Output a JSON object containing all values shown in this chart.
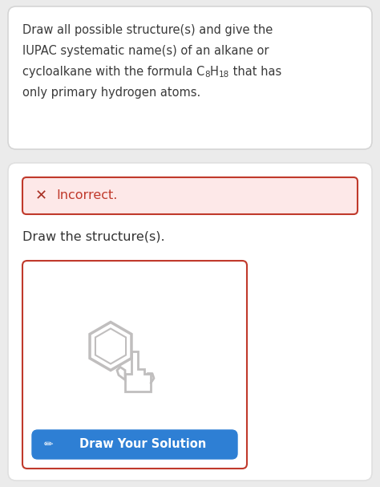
{
  "bg_color": "#ebebeb",
  "card1_bg": "#ffffff",
  "card2_bg": "#ffffff",
  "text_line1": "Draw all possible structure(s) and give the",
  "text_line2": "IUPAC systematic name(s) of an alkane or",
  "text_line3_pre": "cycloalkane with the formula C",
  "text_line3_sub1": "8",
  "text_line3_mid": "H",
  "text_line3_sub2": "18",
  "text_line3_post": " that has",
  "text_line4": "only primary hydrogen atoms.",
  "incorrect_bg": "#fde8e8",
  "incorrect_border": "#c0392b",
  "incorrect_x": "✕",
  "incorrect_x_color": "#a93226",
  "incorrect_text": "Incorrect.",
  "incorrect_text_color": "#c0392b",
  "draw_label": "Draw the structure(s).",
  "draw_label_color": "#333333",
  "draw_box_border": "#c0392b",
  "draw_box_bg": "#ffffff",
  "button_bg": "#2e7fd4",
  "button_text": "Draw Your Solution",
  "button_text_color": "#ffffff",
  "icon_color": "#c0bebe",
  "text_color": "#3a3a3a",
  "text_fontsize": 10.5,
  "sub_fontsize": 7.5,
  "card2_border": "#e0e0e0"
}
